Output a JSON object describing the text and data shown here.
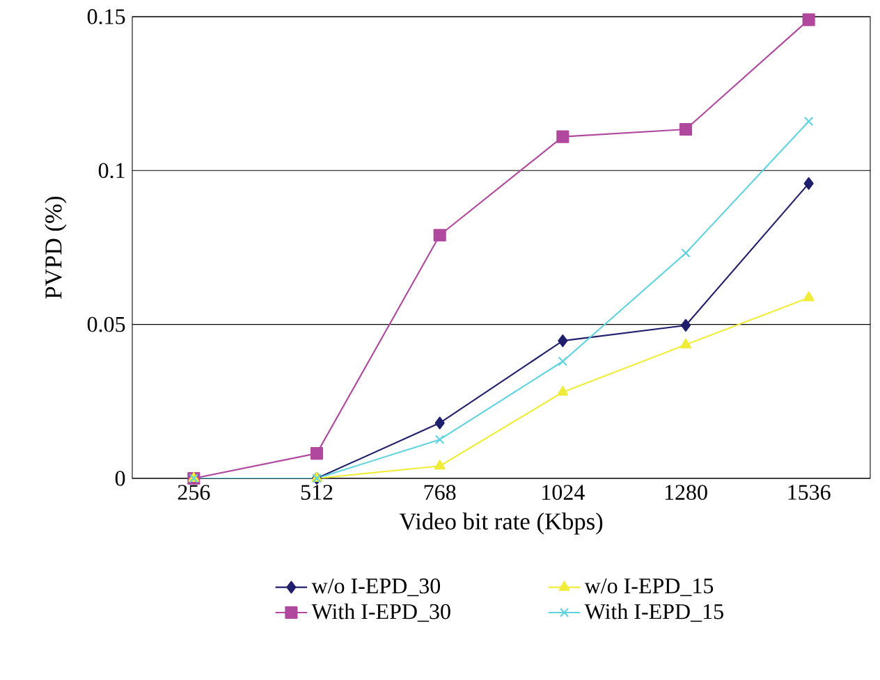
{
  "chart_data": {
    "type": "line",
    "xlabel": "Video bit rate (Kbps)",
    "ylabel": "PVPD (%)",
    "categories": [
      "256",
      "512",
      "768",
      "1024",
      "1280",
      "1536"
    ],
    "series": [
      {
        "name": "w/o I-EPD_30",
        "color": "#1f1f6e",
        "marker": "diamond",
        "values": [
          0,
          0,
          0.018,
          0.0447,
          0.0497,
          0.0958
        ]
      },
      {
        "name": "With I-EPD_30",
        "color": "#b0489e",
        "marker": "square",
        "values": [
          0,
          0.0081,
          0.079,
          0.111,
          0.1134,
          0.149
        ]
      },
      {
        "name": "w/o I-EPD_15",
        "color": "#f0ec3a",
        "marker": "triangle",
        "values": [
          0,
          0,
          0.004,
          0.028,
          0.0434,
          0.0587
        ]
      },
      {
        "name": "With I-EPD_15",
        "color": "#5fd3e0",
        "marker": "cross",
        "values": [
          0,
          0,
          0.0126,
          0.038,
          0.0732,
          0.116
        ]
      }
    ],
    "ylim": [
      0,
      0.15
    ],
    "yticks": [
      0,
      0.05,
      0.1,
      0.15
    ],
    "grid": "y",
    "legend": "bottom",
    "line_style": "solid"
  }
}
